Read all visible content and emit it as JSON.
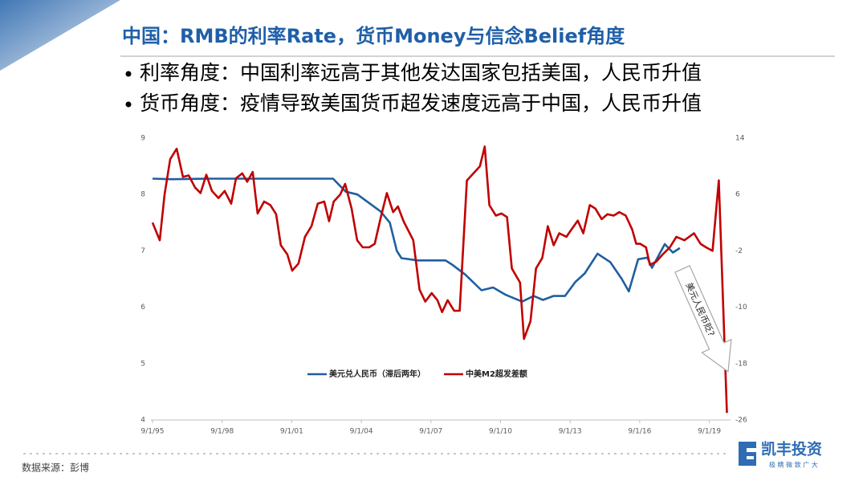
{
  "header": {
    "title": "中国：RMB的利率Rate，货币Money与信念Belief角度"
  },
  "bullets": [
    "利率角度：中国利率远高于其他发达国家包括美国，人民币升值",
    "货币角度：疫情导致美国货币超发速度远高于中国，人民币升值"
  ],
  "source": "数据来源：彭博",
  "logo": {
    "name": "凯丰投资",
    "slogan": "极 精 微 致 广 大"
  },
  "chart_data": {
    "type": "line",
    "xlim": [
      1995.67,
      2020.55
    ],
    "xticks": [
      {
        "value": 1995.67,
        "label": "9/1/95"
      },
      {
        "value": 1998.67,
        "label": "9/1/98"
      },
      {
        "value": 2001.67,
        "label": "9/1/01"
      },
      {
        "value": 2004.67,
        "label": "9/1/04"
      },
      {
        "value": 2007.67,
        "label": "9/1/07"
      },
      {
        "value": 2010.67,
        "label": "9/1/10"
      },
      {
        "value": 2013.67,
        "label": "9/1/13"
      },
      {
        "value": 2016.67,
        "label": "9/1/16"
      },
      {
        "value": 2019.67,
        "label": "9/1/19"
      }
    ],
    "ylim": [
      4,
      9
    ],
    "yticks": [
      4,
      5,
      6,
      7,
      8,
      9
    ],
    "y2lim": [
      -26,
      14
    ],
    "y2ticks": [
      -26,
      -18,
      -10,
      -2,
      6,
      14
    ],
    "annotation": "美元人民币贬?",
    "series": [
      {
        "name": "美元兑人民币（滞后两年）",
        "color": "#1f5fa0",
        "axis": "y",
        "x": [
          1995.67,
          1996.5,
          1998.0,
          2000.0,
          2002.0,
          2003.45,
          2004.0,
          2004.5,
          2005.0,
          2005.5,
          2005.9,
          2006.2,
          2006.4,
          2007.1,
          2008.3,
          2008.6,
          2009.15,
          2009.85,
          2010.35,
          2010.9,
          2011.6,
          2012.1,
          2012.5,
          2012.95,
          2013.45,
          2013.9,
          2014.3,
          2014.85,
          2015.4,
          2015.9,
          2016.2,
          2016.6,
          2017.0,
          2017.2,
          2017.75,
          2018.1,
          2018.4
        ],
        "values": [
          8.28,
          8.27,
          8.28,
          8.28,
          8.28,
          8.28,
          8.05,
          8.0,
          7.85,
          7.7,
          7.5,
          7.0,
          6.87,
          6.83,
          6.83,
          6.75,
          6.58,
          6.3,
          6.35,
          6.22,
          6.1,
          6.2,
          6.13,
          6.2,
          6.2,
          6.45,
          6.6,
          6.95,
          6.8,
          6.5,
          6.28,
          6.85,
          6.88,
          6.7,
          7.12,
          6.97,
          7.05
        ]
      },
      {
        "name": "中美M2超发差额",
        "color": "#c00000",
        "axis": "y2",
        "x": [
          1995.67,
          1995.98,
          1996.19,
          1996.43,
          1996.71,
          1996.98,
          1997.23,
          1997.5,
          1997.74,
          1997.99,
          1998.23,
          1998.51,
          1998.78,
          1999.06,
          1999.27,
          1999.54,
          1999.75,
          1999.99,
          2000.2,
          2000.48,
          2000.75,
          2001.0,
          2001.2,
          2001.48,
          2001.69,
          2001.96,
          2002.24,
          2002.52,
          2002.79,
          2003.07,
          2003.28,
          2003.48,
          2003.76,
          2003.97,
          2004.25,
          2004.49,
          2004.73,
          2005.01,
          2005.25,
          2005.49,
          2005.77,
          2006.04,
          2006.25,
          2006.49,
          2006.91,
          2007.18,
          2007.43,
          2007.7,
          2007.95,
          2008.15,
          2008.39,
          2008.67,
          2008.91,
          2009.22,
          2009.78,
          2009.99,
          2010.19,
          2010.47,
          2010.71,
          2010.95,
          2011.16,
          2011.51,
          2011.68,
          2011.96,
          2012.2,
          2012.47,
          2012.71,
          2012.96,
          2013.2,
          2013.51,
          2013.72,
          2014.0,
          2014.24,
          2014.52,
          2014.76,
          2015.03,
          2015.28,
          2015.55,
          2015.79,
          2016.07,
          2016.35,
          2016.52,
          2016.69,
          2016.94,
          2017.11,
          2017.39,
          2017.66,
          2017.97,
          2018.25,
          2018.6,
          2019.01,
          2019.29,
          2019.53,
          2019.81,
          2020.08,
          2020.43
        ],
        "values": [
          2.0,
          -0.5,
          6,
          11,
          12.5,
          8.5,
          8.7,
          7,
          6.2,
          8.8,
          6.5,
          5.5,
          6.5,
          4.7,
          8.3,
          9,
          7.8,
          9.2,
          3.3,
          5,
          4.5,
          3.2,
          -1.2,
          -2.5,
          -4.8,
          -3.8,
          0,
          1.5,
          4.7,
          5,
          2.2,
          5,
          6,
          7.5,
          4,
          -0.5,
          -1.5,
          -1.5,
          -1,
          2.5,
          6.2,
          3.5,
          4.3,
          2.2,
          -0.5,
          -7.5,
          -9.2,
          -8,
          -9,
          -10.7,
          -9,
          -10.5,
          -10.5,
          8,
          10,
          12.8,
          4.5,
          3,
          3.3,
          2.8,
          -4.5,
          -6.5,
          -14.5,
          -12,
          -4.5,
          -3,
          1.5,
          -1.2,
          0.5,
          0,
          1,
          2.3,
          0.5,
          4.5,
          4,
          2.5,
          3.2,
          3,
          3.5,
          3,
          1,
          -1,
          -1,
          -1.5,
          -4,
          -3.5,
          -2.5,
          -1.5,
          0,
          -0.5,
          0.5,
          -1,
          -1.5,
          -2,
          8,
          -25
        ]
      }
    ]
  }
}
